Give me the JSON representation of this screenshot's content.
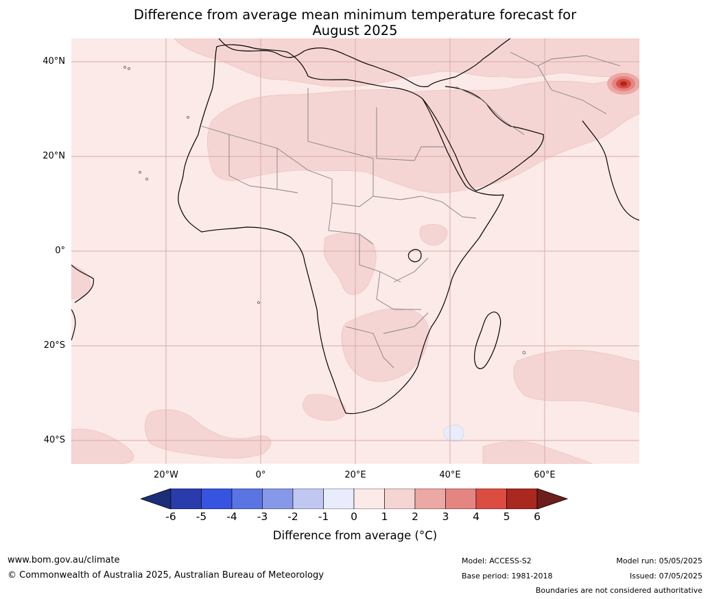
{
  "title": {
    "line1": "Difference from average mean minimum temperature forecast for",
    "line2": "August 2025"
  },
  "map": {
    "region": "Africa",
    "lat_labels": [
      "40°N",
      "20°N",
      "0°",
      "20°S",
      "40°S"
    ],
    "lon_labels": [
      "20°W",
      "0°",
      "20°E",
      "40°E",
      "60°E"
    ],
    "colors": {
      "ocean_fill": "#fbeae8",
      "band_0_1": "#fbeae8",
      "band_1_2": "#f5d5d3",
      "band_2_3": "#eca8a5",
      "band_3_4": "#e48581",
      "band_4_5": "#db4d41",
      "band_5_6": "#a92820",
      "negative_small": "#e8ecfb",
      "coast": "#000000",
      "borders": "#808080",
      "grid": "#d9a8a8"
    }
  },
  "colorbar": {
    "ticks": [
      "-6",
      "-5",
      "-4",
      "-3",
      "-2",
      "-1",
      "0",
      "1",
      "2",
      "3",
      "4",
      "5",
      "6"
    ],
    "colors": [
      "#1c2e78",
      "#2a3cad",
      "#3654e0",
      "#5a74e3",
      "#8698e8",
      "#c0c8f2",
      "#e8ecfb",
      "#fbeae8",
      "#f5d5d3",
      "#eca8a5",
      "#e48581",
      "#db4d41",
      "#a92820",
      "#6e1e1a"
    ],
    "label": "Difference from average (°C)"
  },
  "footer": {
    "website": "www.bom.gov.au/climate",
    "copyright": "© Commonwealth of Australia 2025, Australian Bureau of Meteorology",
    "model": "Model: ACCESS-S2",
    "base_period": "Base period: 1981-2018",
    "model_run": "Model run: 05/05/2025",
    "issued": "Issued: 07/05/2025",
    "disclaimer": "Boundaries are not considered authoritative"
  }
}
